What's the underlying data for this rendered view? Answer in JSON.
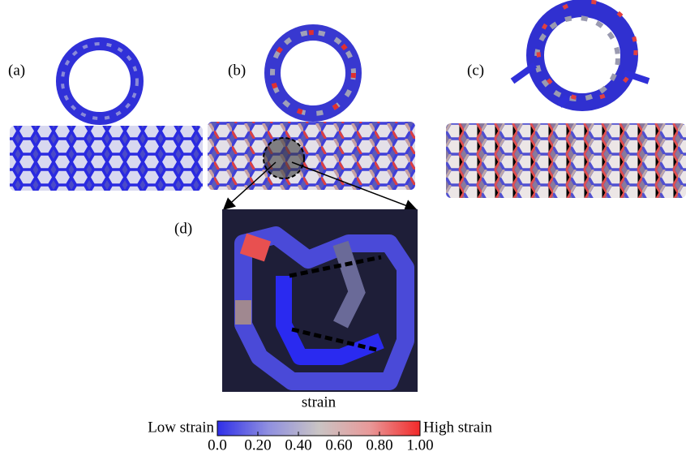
{
  "panels": [
    {
      "label": "(a)"
    },
    {
      "label": "(b)"
    },
    {
      "label": "(c)"
    },
    {
      "label": "(d)"
    }
  ],
  "colorbar": {
    "title": "strain",
    "low_label": "Low strain",
    "high_label": "High strain",
    "range": [
      0,
      1
    ],
    "colors": [
      "#2f2fe8",
      "#8f8fe0",
      "#c9c4c4",
      "#e89a9a",
      "#f22a2a"
    ],
    "ticks": [
      {
        "value": 0,
        "label": "0.0"
      },
      {
        "value": 0.2,
        "label": "0.20"
      },
      {
        "value": 0.4,
        "label": "0.40"
      },
      {
        "value": 0.6,
        "label": "0.60"
      },
      {
        "value": 0.8,
        "label": "0.80"
      },
      {
        "value": 1,
        "label": "1.00"
      }
    ]
  }
}
